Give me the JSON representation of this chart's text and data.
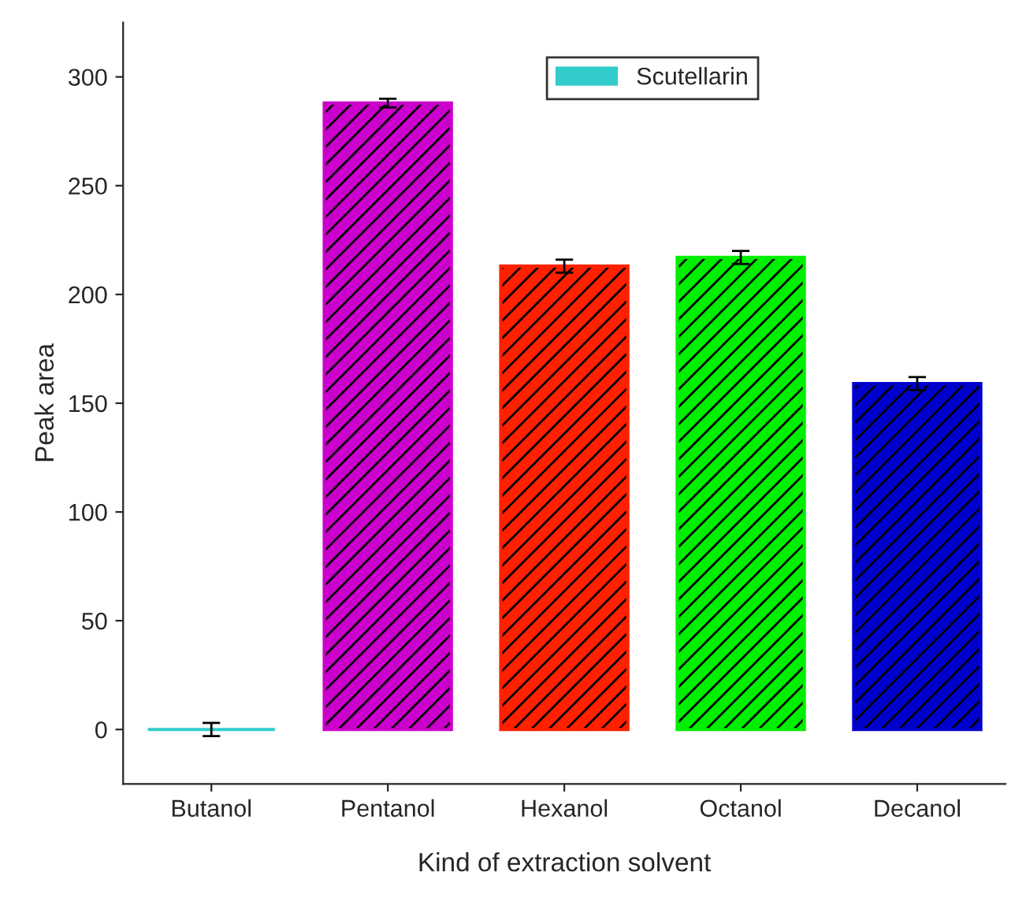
{
  "chart_data": {
    "type": "bar",
    "xlabel": "Kind of extraction solvent",
    "ylabel": "Peak area",
    "categories": [
      "Butanol",
      "Pentanol",
      "Hexanol",
      "Octanol",
      "Decanol"
    ],
    "series": [
      {
        "name": "Scutellarin",
        "values": [
          0,
          288,
          213,
          217,
          159
        ],
        "errors": [
          3,
          2,
          3,
          3,
          3
        ],
        "colors": [
          "#33cccc",
          "#cc00cc",
          "#ff2000",
          "#00ee00",
          "#0000cc"
        ]
      }
    ],
    "ylim": [
      -25,
      325
    ],
    "yticks": [
      0,
      50,
      100,
      150,
      200,
      250,
      300
    ],
    "grid": false,
    "legend": "top"
  }
}
